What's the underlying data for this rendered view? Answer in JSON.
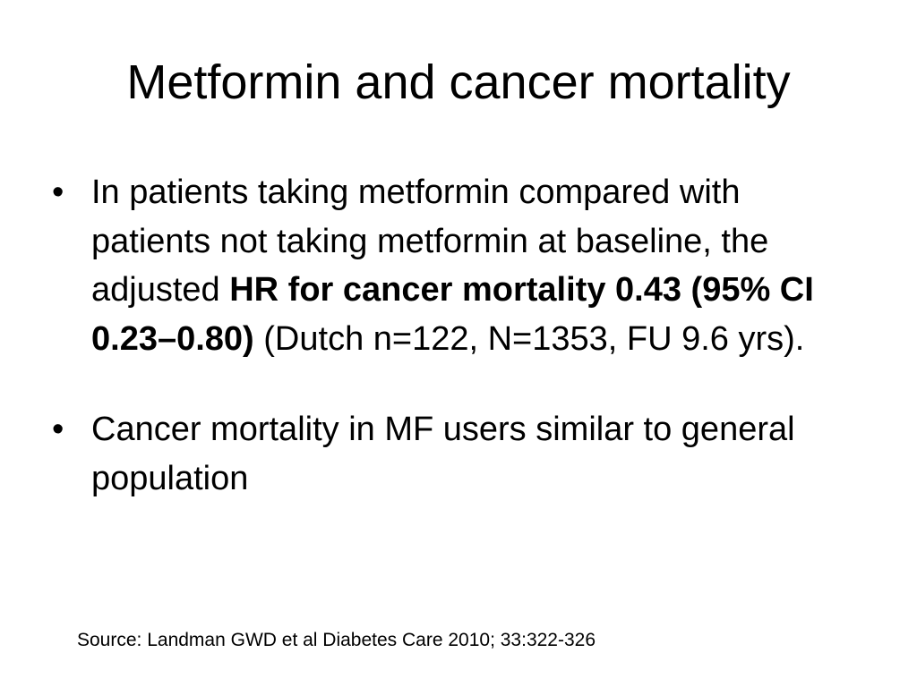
{
  "slide": {
    "title": "Metformin and cancer mortality",
    "bullet_marker": "•",
    "bullets": [
      {
        "pre": "In patients taking metformin compared with patients not taking metformin at baseline, the adjusted ",
        "bold": "HR for cancer mortality 0.43 (95% CI 0.23–0.80)",
        "post": " (Dutch n=122, N=1353, FU 9.6 yrs)."
      },
      {
        "text": "Cancer mortality in MF users similar to general population"
      }
    ],
    "source": "Source: Landman GWD et al Diabetes Care 2010; 33:322-326"
  }
}
